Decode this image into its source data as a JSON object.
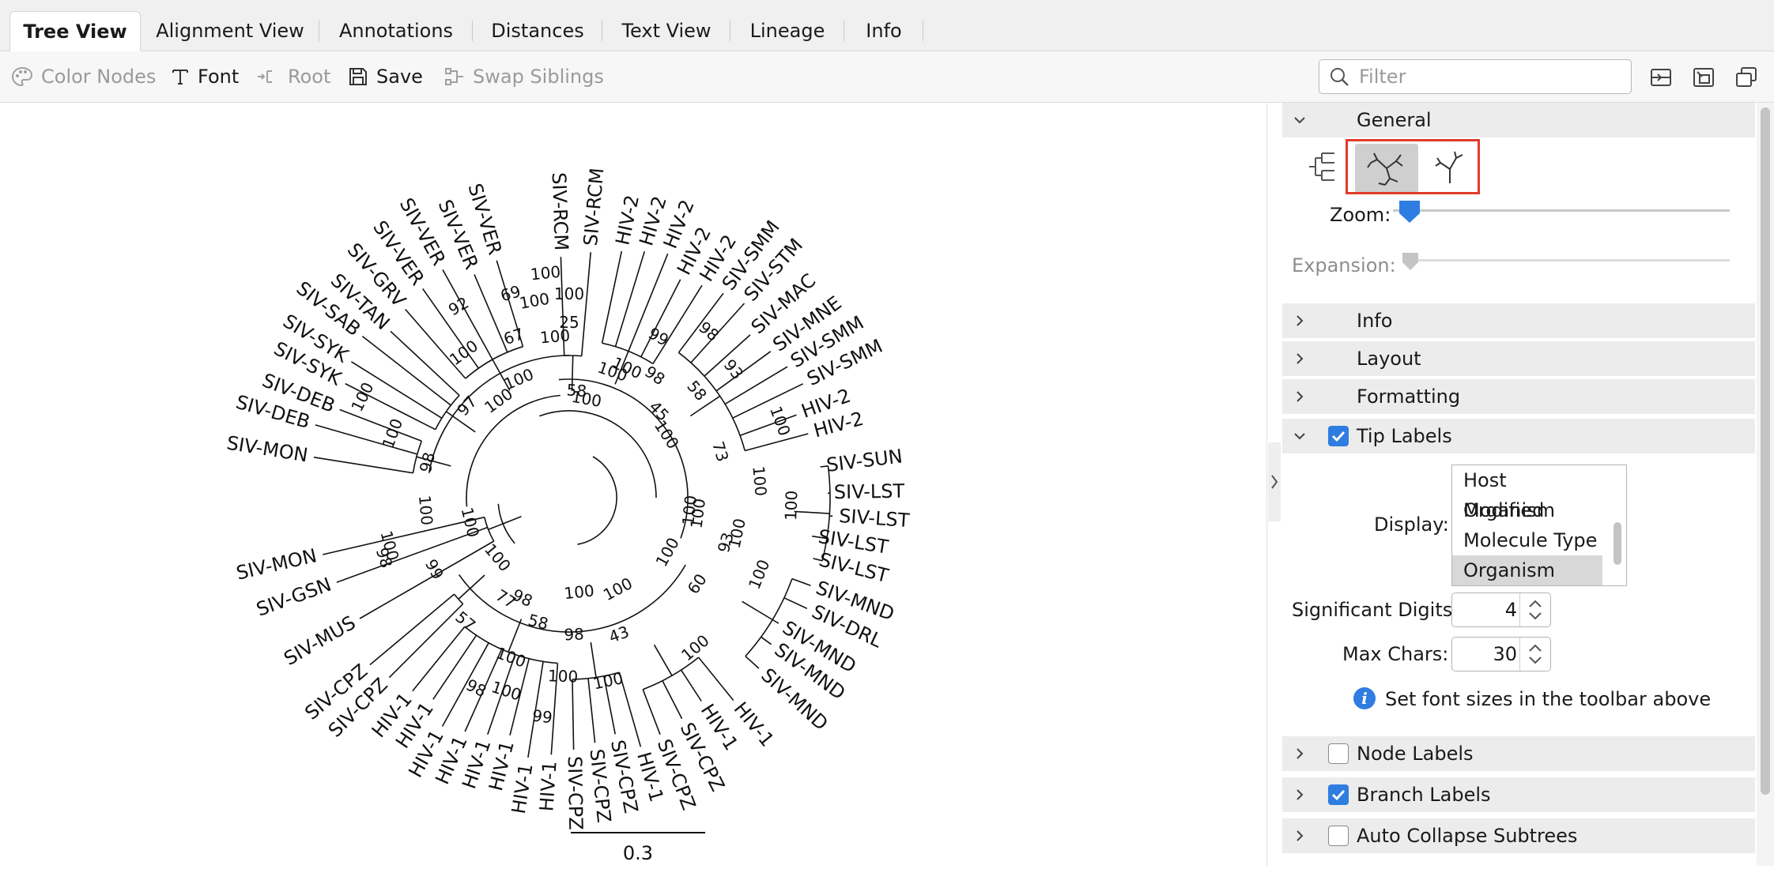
{
  "tabs": [
    {
      "label": "Tree View",
      "active": true
    },
    {
      "label": "Alignment View"
    },
    {
      "label": "Annotations"
    },
    {
      "label": "Distances"
    },
    {
      "label": "Text View"
    },
    {
      "label": "Lineage"
    },
    {
      "label": "Info"
    }
  ],
  "toolbar": {
    "color_nodes": "Color Nodes",
    "font": "Font",
    "root": "Root",
    "save": "Save",
    "swap_siblings": "Swap Siblings",
    "filter_placeholder": "Filter"
  },
  "panel": {
    "general": "General",
    "zoom_label": "Zoom:",
    "expansion_label": "Expansion:",
    "info": "Info",
    "layout": "Layout",
    "formatting": "Formatting",
    "tip_labels": "Tip Labels",
    "display_label": "Display:",
    "display_options": [
      "Host Organism",
      "Modified",
      "Molecule Type",
      "Organism"
    ],
    "display_selected": "Organism",
    "significant_digits_label": "Significant Digits:",
    "significant_digits": "4",
    "max_chars_label": "Max Chars:",
    "max_chars": "30",
    "font_hint": "Set font sizes in the toolbar above",
    "node_labels": "Node Labels",
    "branch_labels": "Branch Labels",
    "auto_collapse": "Auto Collapse Subtrees",
    "tip_labels_checked": true,
    "node_labels_checked": false,
    "branch_labels_checked": true,
    "auto_collapse_checked": false
  },
  "tree": {
    "scale_label": "0.3",
    "tips": [
      {
        "label": "SIV-RCM",
        "angle": -92
      },
      {
        "label": "SIV-RCM",
        "angle": -85
      },
      {
        "label": "HIV-2",
        "angle": -78
      },
      {
        "label": "HIV-2",
        "angle": -73
      },
      {
        "label": "HIV-2",
        "angle": -68
      },
      {
        "label": "HIV-2",
        "angle": -63
      },
      {
        "label": "HIV-2",
        "angle": -58
      },
      {
        "label": "SIV-SMM",
        "angle": -53
      },
      {
        "label": "SIV-STM",
        "angle": -48
      },
      {
        "label": "SIV-MAC",
        "angle": -42
      },
      {
        "label": "SIV-MNE",
        "angle": -36
      },
      {
        "label": "SIV-SMM",
        "angle": -31
      },
      {
        "label": "SIV-SMM",
        "angle": -26
      },
      {
        "label": "HIV-2",
        "angle": -20
      },
      {
        "label": "HIV-2",
        "angle": -15
      },
      {
        "label": "SIV-SUN",
        "angle": -7
      },
      {
        "label": "SIV-LST",
        "angle": -1
      },
      {
        "label": "SIV-LST",
        "angle": 4
      },
      {
        "label": "SIV-LST",
        "angle": 9
      },
      {
        "label": "SIV-LST",
        "angle": 14
      },
      {
        "label": "SIV-MND",
        "angle": 20
      },
      {
        "label": "SIV-DRL",
        "angle": 25
      },
      {
        "label": "SIV-MND",
        "angle": 31
      },
      {
        "label": "SIV-MND",
        "angle": 36
      },
      {
        "label": "SIV-MND",
        "angle": 42
      },
      {
        "label": "HIV-1",
        "angle": 51
      },
      {
        "label": "HIV-1",
        "angle": 57
      },
      {
        "label": "SIV-CPZ",
        "angle": 63
      },
      {
        "label": "SIV-CPZ",
        "angle": 69
      },
      {
        "label": "HIV-1",
        "angle": 74
      },
      {
        "label": "SIV-CPZ",
        "angle": 79
      },
      {
        "label": "SIV-CPZ",
        "angle": 84
      },
      {
        "label": "SIV-CPZ",
        "angle": 89
      },
      {
        "label": "HIV-1",
        "angle": 94
      },
      {
        "label": "HIV-1",
        "angle": 99
      },
      {
        "label": "HIV-1",
        "angle": 104
      },
      {
        "label": "HIV-1",
        "angle": 109
      },
      {
        "label": "HIV-1",
        "angle": 114
      },
      {
        "label": "HIV-1",
        "angle": 119
      },
      {
        "label": "HIV-1",
        "angle": 124
      },
      {
        "label": "HIV-1",
        "angle": 129
      },
      {
        "label": "SIV-CPZ",
        "angle": 135
      },
      {
        "label": "SIV-CPZ",
        "angle": 140
      },
      {
        "label": "SIV-MUS",
        "angle": 150
      },
      {
        "label": "SIV-GSN",
        "angle": 160
      },
      {
        "label": "SIV-MON",
        "angle": 167
      },
      {
        "label": "SIV-MON",
        "angle": 189
      },
      {
        "label": "SIV-DEB",
        "angle": 196
      },
      {
        "label": "SIV-DEB",
        "angle": 201
      },
      {
        "label": "SIV-SYK",
        "angle": 207
      },
      {
        "label": "SIV-SYK",
        "angle": 212
      },
      {
        "label": "SIV-SAB",
        "angle": 218
      },
      {
        "label": "SIV-TAN",
        "angle": 223
      },
      {
        "label": "SIV-GRV",
        "angle": 229
      },
      {
        "label": "SIV-VER",
        "angle": 235
      },
      {
        "label": "SIV-VER",
        "angle": 241
      },
      {
        "label": "SIV-VER",
        "angle": 247
      },
      {
        "label": "SIV-VER",
        "angle": 253
      }
    ],
    "support": [
      {
        "label": "100",
        "angle": -80
      },
      {
        "label": "100",
        "angle": -66
      },
      {
        "label": "99",
        "angle": -61
      },
      {
        "label": "100",
        "angle": -96
      },
      {
        "label": "100",
        "angle": -71
      },
      {
        "label": "25",
        "angle": -90
      },
      {
        "label": "98",
        "angle": -50
      },
      {
        "label": "45",
        "angle": -44
      },
      {
        "label": "58",
        "angle": -40
      },
      {
        "label": "93",
        "angle": -38
      },
      {
        "label": "100",
        "angle": -33
      },
      {
        "label": "73",
        "angle": -17
      },
      {
        "label": "100",
        "angle": -100
      },
      {
        "label": "58",
        "angle": -86
      },
      {
        "label": "98",
        "angle": -55
      },
      {
        "label": "100",
        "angle": -5
      },
      {
        "label": "100",
        "angle": 2
      },
      {
        "label": "100",
        "angle": 7
      },
      {
        "label": "100",
        "angle": 12
      },
      {
        "label": "100",
        "angle": -20
      },
      {
        "label": "100",
        "angle": 6
      },
      {
        "label": "93",
        "angle": 16
      },
      {
        "label": "100",
        "angle": 22
      },
      {
        "label": "100",
        "angle": 29
      },
      {
        "label": "60",
        "angle": 34
      },
      {
        "label": "100",
        "angle": 50
      },
      {
        "label": "100",
        "angle": 62
      },
      {
        "label": "43",
        "angle": 70
      },
      {
        "label": "100",
        "angle": 78
      },
      {
        "label": "100",
        "angle": 84
      },
      {
        "label": "98",
        "angle": 88
      },
      {
        "label": "100",
        "angle": 92
      },
      {
        "label": "99",
        "angle": 97
      },
      {
        "label": "58",
        "angle": 104
      },
      {
        "label": "100",
        "angle": 110
      },
      {
        "label": "98",
        "angle": 116
      },
      {
        "label": "77",
        "angle": 122
      },
      {
        "label": "57",
        "angle": 130
      },
      {
        "label": "100",
        "angle": 108
      },
      {
        "label": "98",
        "angle": 115
      },
      {
        "label": "99",
        "angle": 152
      },
      {
        "label": "98",
        "angle": 162
      },
      {
        "label": "100",
        "angle": 166
      },
      {
        "label": "100",
        "angle": 175
      },
      {
        "label": "100",
        "angle": 165
      },
      {
        "label": "100",
        "angle": 140
      },
      {
        "label": "98",
        "angle": 194
      },
      {
        "label": "100",
        "angle": 200
      },
      {
        "label": "100",
        "angle": 206
      },
      {
        "label": "97",
        "angle": 222
      },
      {
        "label": "100",
        "angle": 234
      },
      {
        "label": "92",
        "angle": 240
      },
      {
        "label": "100",
        "angle": 247
      },
      {
        "label": "67",
        "angle": 251
      },
      {
        "label": "69",
        "angle": 254
      },
      {
        "label": "100",
        "angle": 234
      },
      {
        "label": "100",
        "angle": 265
      },
      {
        "label": "100",
        "angle": 270
      }
    ]
  }
}
